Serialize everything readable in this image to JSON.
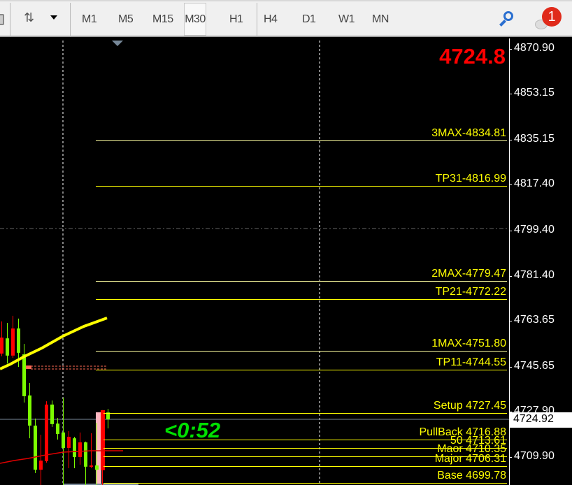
{
  "toolbar": {
    "timeframes": [
      "M1",
      "M5",
      "M15",
      "M30",
      "H1",
      "H4",
      "D1",
      "W1",
      "MN"
    ],
    "active_timeframe": "M30",
    "notification_count": "1",
    "icons": [
      "chart-style-icon",
      "dropdown-icon",
      "search-icon",
      "notification-icon"
    ]
  },
  "chart": {
    "bid_big": "4724.8",
    "timer": "<0:52",
    "current_price": "4724.92",
    "axis_labels": [
      "4870.90",
      "4853.15",
      "4835.15",
      "4817.40",
      "4799.40",
      "4781.40",
      "4763.65",
      "4745.65",
      "4727.90",
      "4709.90"
    ],
    "levels": [
      {
        "label": "3MAX-4834.81",
        "price": 4834.81
      },
      {
        "label": "TP31-4816.99",
        "price": 4816.99
      },
      {
        "label": "2MAX-4779.47",
        "price": 4779.47
      },
      {
        "label": "TP21-4772.22",
        "price": 4772.22
      },
      {
        "label": "1MAX-4751.80",
        "price": 4751.8
      },
      {
        "label": "TP11-4744.55",
        "price": 4744.55
      },
      {
        "label": "Setup 4727.45",
        "price": 4727.45
      },
      {
        "label": "PullBack 4716.88",
        "price": 4716.88
      },
      {
        "label": "50 4713.61",
        "price": 4713.61
      },
      {
        "label": "Maor 4710.35",
        "price": 4710.35
      },
      {
        "label": "Major 4706.31",
        "price": 4706.31
      },
      {
        "label": "Base 4699.78",
        "price": 4699.78
      }
    ],
    "colors": {
      "bull": "#7cfc00",
      "bear": "#ff0000",
      "level": "#ffff00",
      "bid": "#ff0000",
      "timer": "#00e000"
    },
    "candles": [
      [
        4757.1,
        4763.5,
        4749.7,
        4750.8
      ],
      [
        4750.0,
        4762.9,
        4746.9,
        4756.8
      ],
      [
        4760.7,
        4765.7,
        4749.1,
        4750.0
      ],
      [
        4751.1,
        4764.6,
        4745.5,
        4760.7
      ],
      [
        4734.0,
        4754.6,
        4731.5,
        4750.5
      ],
      [
        4722.4,
        4739.2,
        4717.4,
        4734.3
      ],
      [
        4705.0,
        4725.2,
        4703.7,
        4722.4
      ],
      [
        4708.6,
        4718.8,
        4699.0,
        4705.0
      ],
      [
        4730.7,
        4732.0,
        4707.8,
        4708.4
      ],
      [
        4723.0,
        4732.3,
        4721.9,
        4730.7
      ],
      [
        4719.1,
        4725.4,
        4716.9,
        4723.2
      ],
      [
        4713.6,
        4733.4,
        4699.0,
        4719.7
      ],
      [
        4718.0,
        4720.2,
        4705.6,
        4713.6
      ],
      [
        4710.0,
        4718.0,
        4705.6,
        4717.4
      ],
      [
        4715.8,
        4719.7,
        4707.0,
        4710.0
      ],
      [
        4706.2,
        4716.1,
        4699.0,
        4715.8
      ],
      [
        4706.7,
        4719.4,
        4705.6,
        4706.2
      ],
      [
        4705.0,
        4723.5,
        4699.0,
        4706.7
      ],
      [
        4728.5,
        4728.5,
        4699.0,
        4704.8
      ],
      [
        4724.9,
        4729.0,
        4721.3,
        4727.6
      ]
    ]
  }
}
